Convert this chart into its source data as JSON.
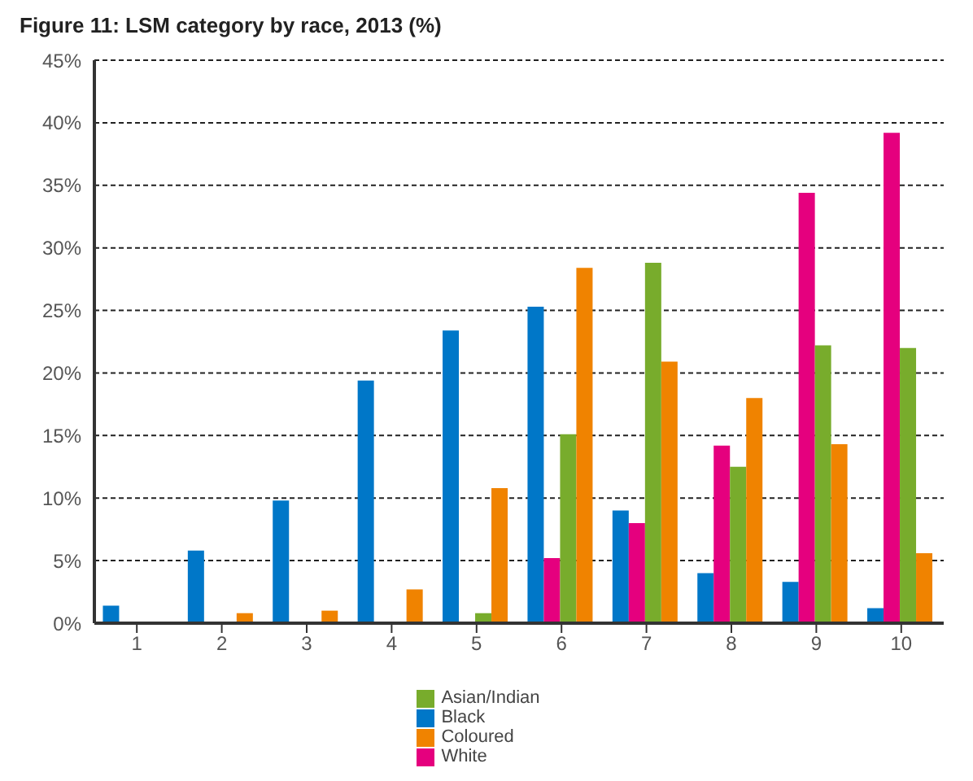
{
  "chart_data": {
    "type": "bar",
    "title": "Figure 11:  LSM category by race, 2013 (%)",
    "categories": [
      "1",
      "2",
      "3",
      "4",
      "5",
      "6",
      "7",
      "8",
      "9",
      "10"
    ],
    "series": [
      {
        "name": "Black",
        "color": "#0077c8",
        "values": [
          1.4,
          5.8,
          9.8,
          19.4,
          23.4,
          25.3,
          9.0,
          4.0,
          3.3,
          1.2
        ]
      },
      {
        "name": "White",
        "color": "#e5007e",
        "values": [
          0,
          0,
          0,
          0,
          0,
          5.2,
          8.0,
          14.2,
          34.4,
          39.2
        ]
      },
      {
        "name": "Asian/Indian",
        "color": "#78ac2c",
        "values": [
          0,
          0,
          0,
          0,
          0.8,
          15.1,
          28.8,
          12.5,
          22.2,
          22.0
        ]
      },
      {
        "name": "Coloured",
        "color": "#f08300",
        "values": [
          0,
          0.8,
          1.0,
          2.7,
          10.8,
          28.4,
          20.9,
          18.0,
          14.3,
          5.6
        ]
      }
    ],
    "ylim": [
      0,
      45
    ],
    "yticks": [
      {
        "value": 0,
        "label": "0%"
      },
      {
        "value": 5,
        "label": "5%"
      },
      {
        "value": 10,
        "label": "10%"
      },
      {
        "value": 15,
        "label": "15%"
      },
      {
        "value": 20,
        "label": "20%"
      },
      {
        "value": 25,
        "label": "25%"
      },
      {
        "value": 30,
        "label": "30%"
      },
      {
        "value": 35,
        "label": "35%"
      },
      {
        "value": 40,
        "label": "40%"
      },
      {
        "value": 45,
        "label": "45%"
      }
    ],
    "grid": "y",
    "legend": "bottom"
  }
}
